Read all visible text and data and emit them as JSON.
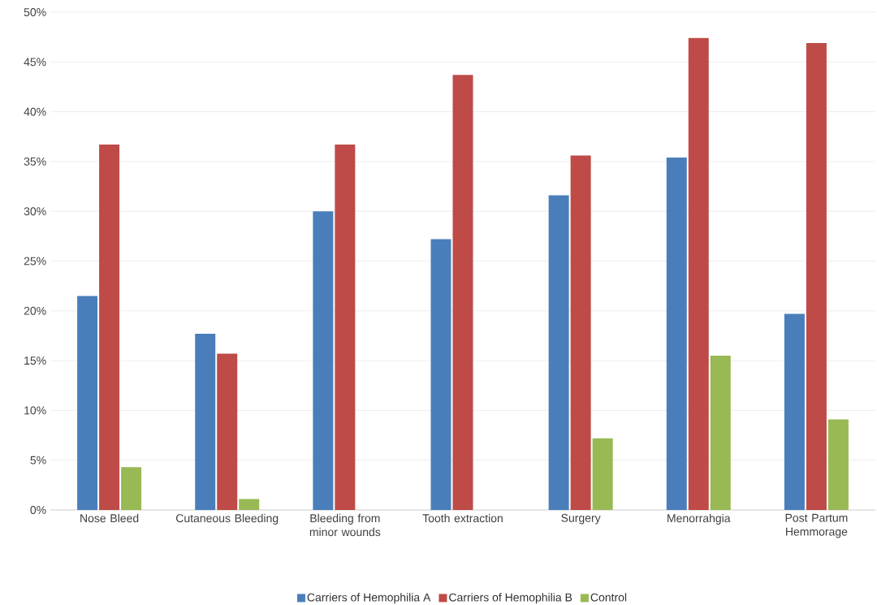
{
  "chart_data": {
    "type": "bar",
    "categories": [
      "Nose Bleed",
      "Cutaneous Bleeding",
      "Bleeding from minor wounds",
      "Tooth extraction",
      "Surgery",
      "Menorrahgia",
      "Post Partum Hemmorage"
    ],
    "series": [
      {
        "name": "Carriers of Hemophilia A",
        "color": "#4a7ebb",
        "values": [
          21.5,
          17.7,
          30.0,
          27.2,
          31.6,
          35.4,
          19.7
        ]
      },
      {
        "name": "Carriers of Hemophilia B",
        "color": "#be4b48",
        "values": [
          36.7,
          15.7,
          36.7,
          43.7,
          35.6,
          47.4,
          46.9
        ]
      },
      {
        "name": "Control",
        "color": "#98b954",
        "values": [
          4.3,
          1.1,
          0,
          0,
          7.2,
          15.5,
          9.1
        ]
      }
    ],
    "ylim": [
      0,
      50
    ],
    "yticks": [
      {
        "value": 0,
        "label": "0%"
      },
      {
        "value": 5,
        "label": "5%"
      },
      {
        "value": 10,
        "label": "10%"
      },
      {
        "value": 15,
        "label": "15%"
      },
      {
        "value": 20,
        "label": "20%"
      },
      {
        "value": 25,
        "label": "25%"
      },
      {
        "value": 30,
        "label": "30%"
      },
      {
        "value": 35,
        "label": "35%"
      },
      {
        "value": 40,
        "label": "40%"
      },
      {
        "value": 45,
        "label": "45%"
      },
      {
        "value": 50,
        "label": "50%"
      }
    ],
    "grid": "y",
    "legend": "bottom"
  }
}
